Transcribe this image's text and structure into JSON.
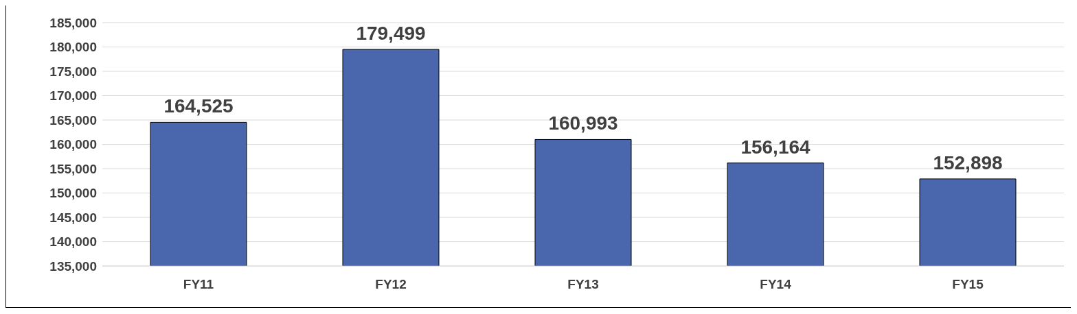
{
  "chart_data": {
    "type": "bar",
    "categories": [
      "FY11",
      "FY12",
      "FY13",
      "FY14",
      "FY15"
    ],
    "values": [
      164525,
      179499,
      160993,
      156164,
      152898
    ],
    "color": "#4a66ac",
    "value_labels": [
      "164,525",
      "179,499",
      "160,993",
      "156,164",
      "152,898"
    ],
    "ylim": [
      135000,
      185000
    ],
    "yticks": [
      {
        "value": 135000,
        "label": "135,000"
      },
      {
        "value": 140000,
        "label": "140,000"
      },
      {
        "value": 145000,
        "label": "145,000"
      },
      {
        "value": 150000,
        "label": "150,000"
      },
      {
        "value": 155000,
        "label": "155,000"
      },
      {
        "value": 160000,
        "label": "160,000"
      },
      {
        "value": 165000,
        "label": "165,000"
      },
      {
        "value": 170000,
        "label": "170,000"
      },
      {
        "value": 175000,
        "label": "175,000"
      },
      {
        "value": 180000,
        "label": "180,000"
      },
      {
        "value": 185000,
        "label": "185,000"
      }
    ],
    "grid": "y"
  }
}
